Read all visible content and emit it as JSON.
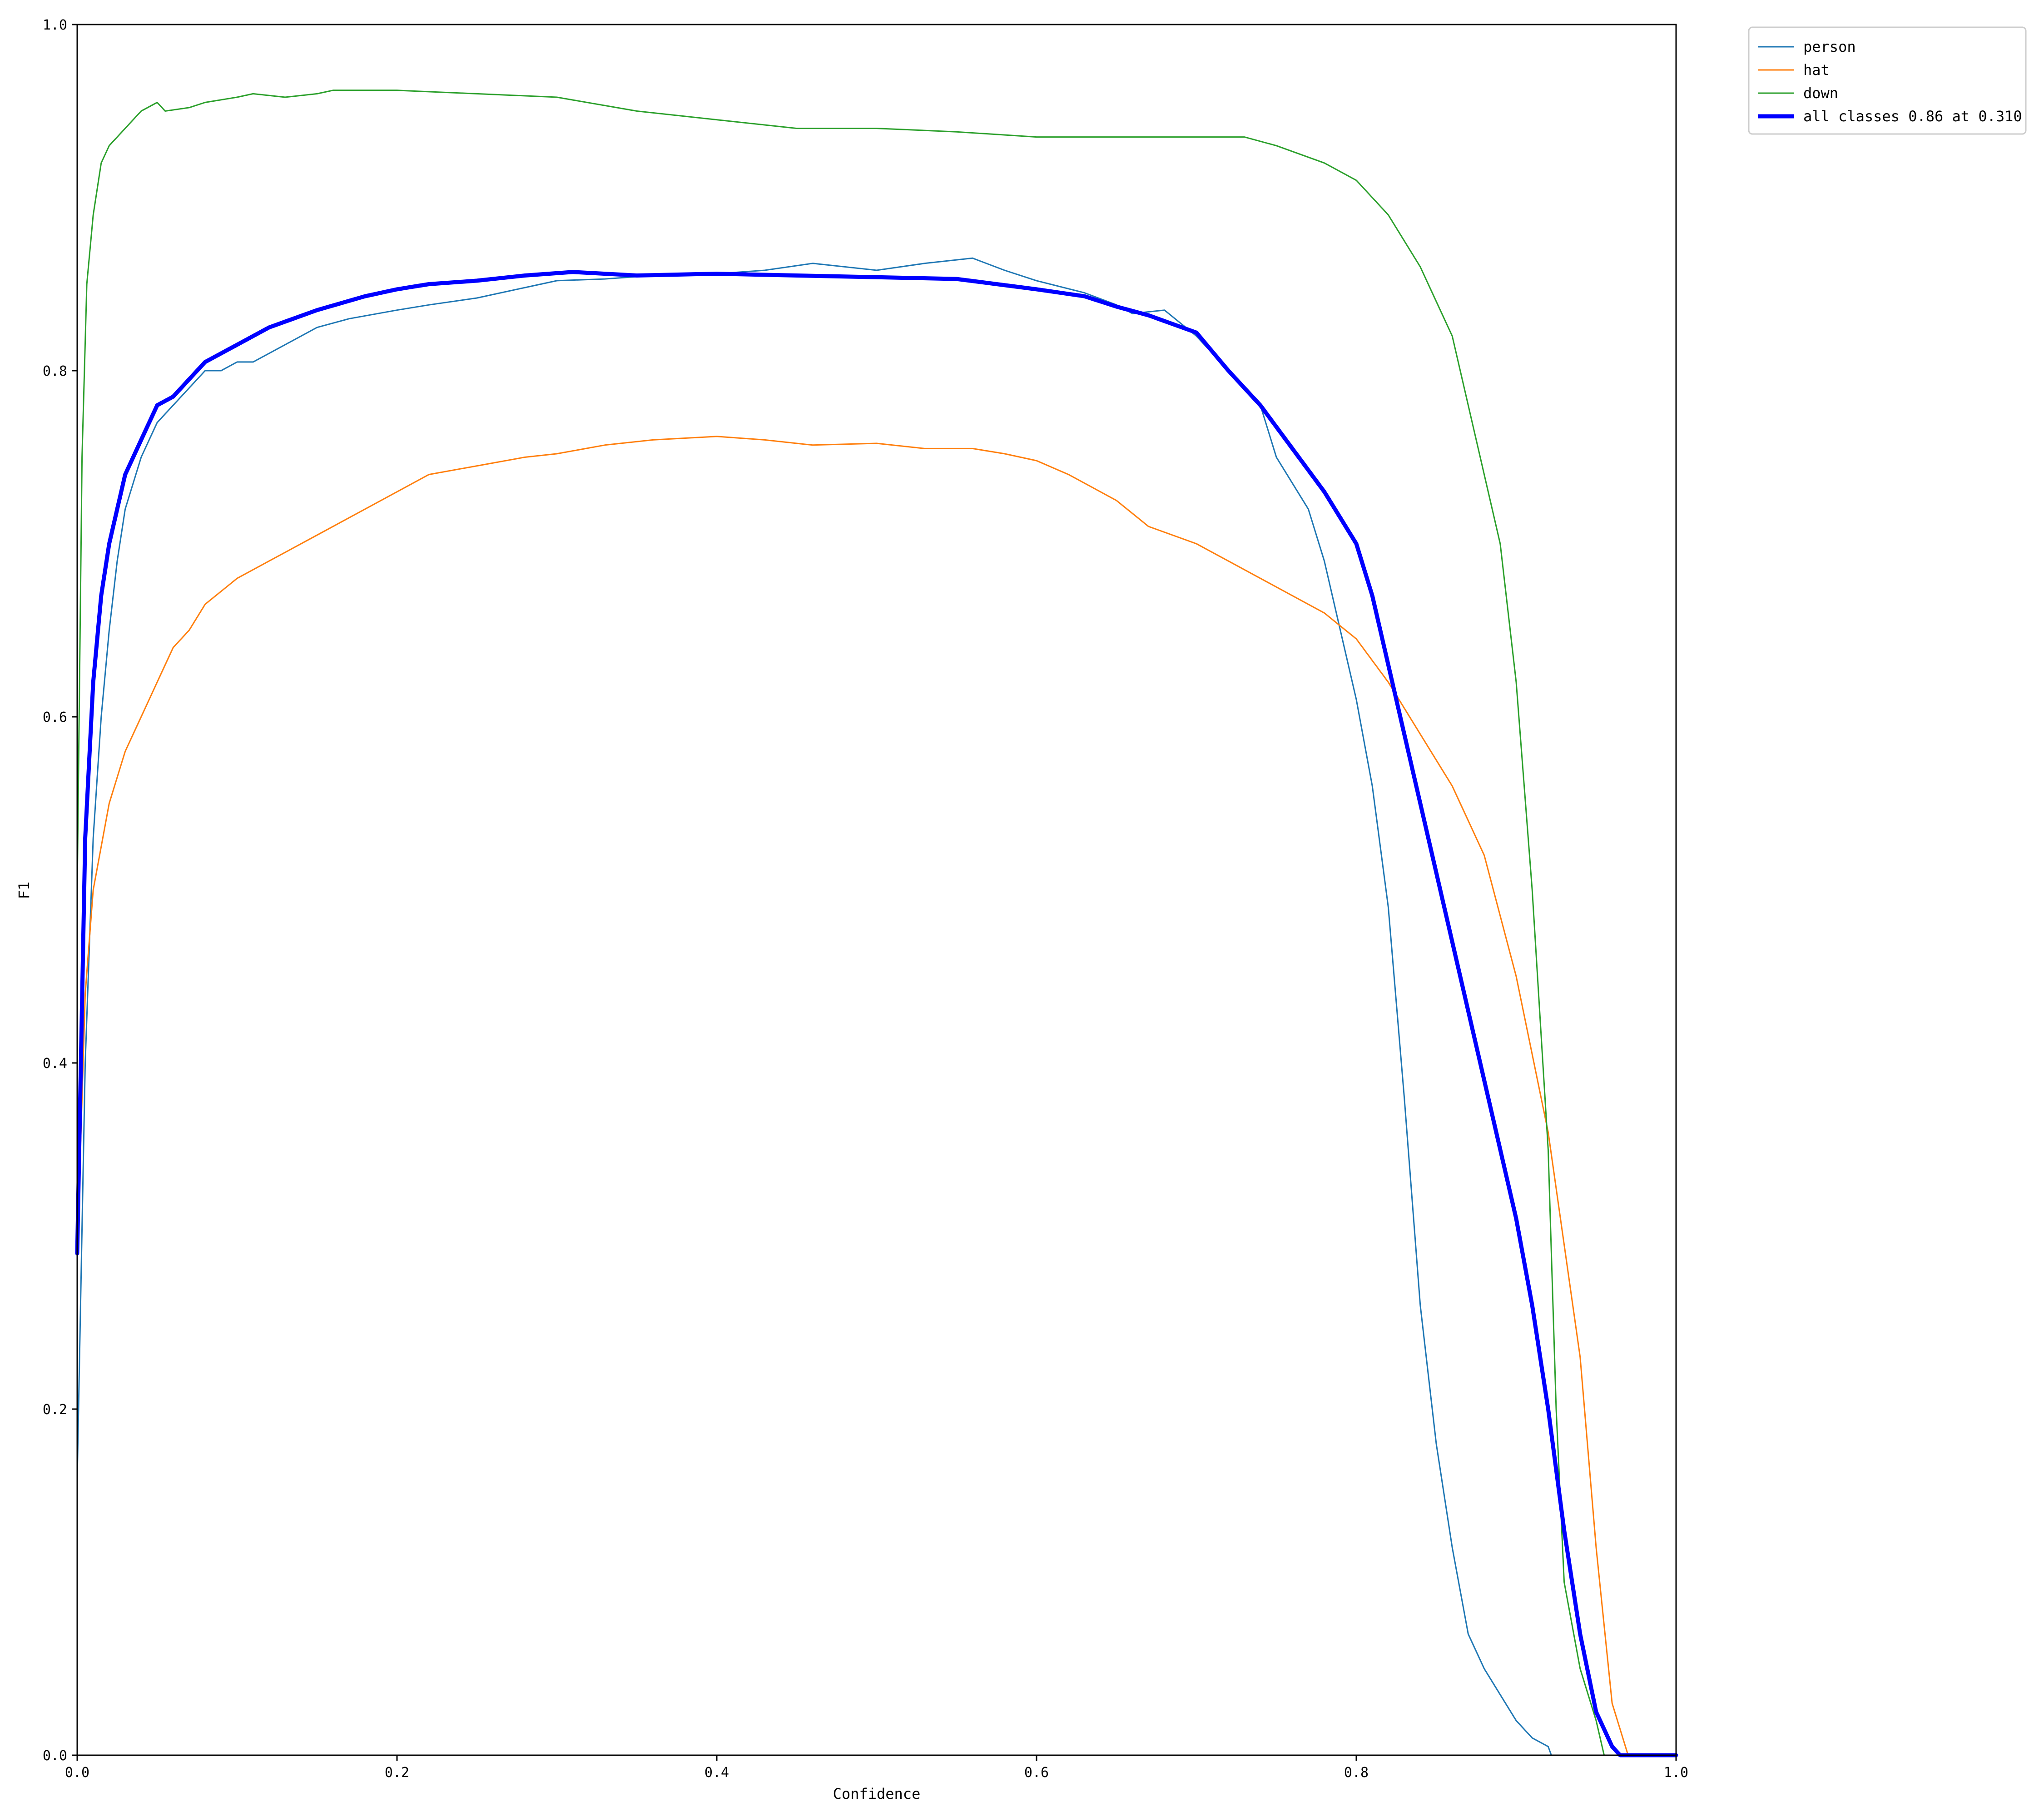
{
  "chart_data": {
    "type": "line",
    "title": "",
    "xlabel": "Confidence",
    "ylabel": "F1",
    "xlim": [
      0,
      1
    ],
    "ylim": [
      0,
      1
    ],
    "xticks": [
      "0.0",
      "0.2",
      "0.4",
      "0.6",
      "0.8",
      "1.0"
    ],
    "yticks": [
      "0.0",
      "0.2",
      "0.4",
      "0.6",
      "0.8",
      "1.0"
    ],
    "grid": false,
    "legend_position": "outside-top-right",
    "series": [
      {
        "name": "person",
        "color": "#1f77b4",
        "width": "thin",
        "x": [
          0,
          0.005,
          0.01,
          0.015,
          0.02,
          0.025,
          0.03,
          0.04,
          0.05,
          0.06,
          0.07,
          0.08,
          0.09,
          0.1,
          0.11,
          0.12,
          0.13,
          0.15,
          0.17,
          0.2,
          0.22,
          0.25,
          0.28,
          0.3,
          0.33,
          0.36,
          0.4,
          0.43,
          0.46,
          0.5,
          0.53,
          0.56,
          0.58,
          0.6,
          0.63,
          0.65,
          0.66,
          0.68,
          0.7,
          0.72,
          0.74,
          0.75,
          0.77,
          0.78,
          0.79,
          0.8,
          0.81,
          0.82,
          0.83,
          0.84,
          0.85,
          0.86,
          0.87,
          0.88,
          0.9,
          0.91,
          0.92,
          0.922,
          0.93,
          0.95,
          1.0
        ],
        "y": [
          0.16,
          0.4,
          0.53,
          0.6,
          0.65,
          0.69,
          0.72,
          0.75,
          0.77,
          0.78,
          0.79,
          0.8,
          0.8,
          0.805,
          0.805,
          0.81,
          0.815,
          0.825,
          0.83,
          0.835,
          0.838,
          0.842,
          0.848,
          0.852,
          0.853,
          0.855,
          0.856,
          0.858,
          0.862,
          0.858,
          0.862,
          0.865,
          0.858,
          0.852,
          0.845,
          0.838,
          0.833,
          0.835,
          0.82,
          0.8,
          0.78,
          0.75,
          0.72,
          0.69,
          0.65,
          0.61,
          0.56,
          0.49,
          0.38,
          0.26,
          0.18,
          0.12,
          0.07,
          0.05,
          0.02,
          0.01,
          0.005,
          0,
          0,
          0,
          0
        ]
      },
      {
        "name": "hat",
        "color": "#ff7f0e",
        "width": "thin",
        "x": [
          0,
          0.005,
          0.01,
          0.02,
          0.03,
          0.04,
          0.05,
          0.06,
          0.07,
          0.08,
          0.1,
          0.12,
          0.15,
          0.18,
          0.2,
          0.22,
          0.25,
          0.28,
          0.3,
          0.33,
          0.36,
          0.4,
          0.43,
          0.46,
          0.5,
          0.53,
          0.56,
          0.58,
          0.6,
          0.62,
          0.65,
          0.67,
          0.7,
          0.72,
          0.74,
          0.76,
          0.78,
          0.8,
          0.82,
          0.84,
          0.86,
          0.88,
          0.9,
          0.92,
          0.94,
          0.95,
          0.96,
          0.97,
          1.0
        ],
        "y": [
          0.29,
          0.44,
          0.5,
          0.55,
          0.58,
          0.6,
          0.62,
          0.64,
          0.65,
          0.665,
          0.68,
          0.69,
          0.705,
          0.72,
          0.73,
          0.74,
          0.745,
          0.75,
          0.752,
          0.757,
          0.76,
          0.762,
          0.76,
          0.757,
          0.758,
          0.755,
          0.755,
          0.752,
          0.748,
          0.74,
          0.725,
          0.71,
          0.7,
          0.69,
          0.68,
          0.67,
          0.66,
          0.645,
          0.62,
          0.59,
          0.56,
          0.52,
          0.45,
          0.36,
          0.23,
          0.12,
          0.03,
          0,
          0
        ]
      },
      {
        "name": "down",
        "color": "#2ca02c",
        "width": "thin",
        "x": [
          0,
          0.003,
          0.006,
          0.01,
          0.015,
          0.02,
          0.03,
          0.04,
          0.05,
          0.055,
          0.07,
          0.08,
          0.1,
          0.11,
          0.13,
          0.15,
          0.16,
          0.2,
          0.25,
          0.3,
          0.35,
          0.4,
          0.45,
          0.5,
          0.55,
          0.6,
          0.65,
          0.7,
          0.73,
          0.75,
          0.78,
          0.8,
          0.82,
          0.84,
          0.85,
          0.86,
          0.87,
          0.88,
          0.89,
          0.9,
          0.91,
          0.92,
          0.925,
          0.93,
          0.94,
          0.95,
          0.955,
          1.0
        ],
        "y": [
          0.5,
          0.75,
          0.85,
          0.89,
          0.92,
          0.93,
          0.94,
          0.95,
          0.955,
          0.95,
          0.952,
          0.955,
          0.958,
          0.96,
          0.958,
          0.96,
          0.962,
          0.962,
          0.96,
          0.958,
          0.95,
          0.945,
          0.94,
          0.94,
          0.938,
          0.935,
          0.935,
          0.935,
          0.935,
          0.93,
          0.92,
          0.91,
          0.89,
          0.86,
          0.84,
          0.82,
          0.78,
          0.74,
          0.7,
          0.62,
          0.5,
          0.35,
          0.2,
          0.1,
          0.05,
          0.02,
          0,
          0
        ]
      },
      {
        "name": "all classes 0.86 at 0.310",
        "color": "#0000ff",
        "width": "thick",
        "x": [
          0,
          0.005,
          0.01,
          0.015,
          0.02,
          0.025,
          0.03,
          0.04,
          0.05,
          0.06,
          0.07,
          0.08,
          0.09,
          0.1,
          0.12,
          0.15,
          0.18,
          0.2,
          0.22,
          0.25,
          0.28,
          0.31,
          0.35,
          0.4,
          0.45,
          0.5,
          0.55,
          0.6,
          0.63,
          0.65,
          0.67,
          0.7,
          0.72,
          0.74,
          0.76,
          0.78,
          0.8,
          0.81,
          0.82,
          0.83,
          0.84,
          0.85,
          0.86,
          0.87,
          0.88,
          0.89,
          0.9,
          0.91,
          0.92,
          0.93,
          0.94,
          0.95,
          0.96,
          0.965,
          0.97,
          1.0
        ],
        "y": [
          0.29,
          0.53,
          0.62,
          0.67,
          0.7,
          0.72,
          0.74,
          0.76,
          0.78,
          0.785,
          0.795,
          0.805,
          0.81,
          0.815,
          0.825,
          0.835,
          0.843,
          0.847,
          0.85,
          0.852,
          0.855,
          0.857,
          0.855,
          0.856,
          0.855,
          0.854,
          0.853,
          0.847,
          0.843,
          0.837,
          0.832,
          0.822,
          0.8,
          0.78,
          0.755,
          0.73,
          0.7,
          0.67,
          0.63,
          0.59,
          0.55,
          0.51,
          0.47,
          0.43,
          0.39,
          0.35,
          0.31,
          0.26,
          0.2,
          0.13,
          0.07,
          0.025,
          0.005,
          0,
          0,
          0
        ]
      }
    ]
  }
}
